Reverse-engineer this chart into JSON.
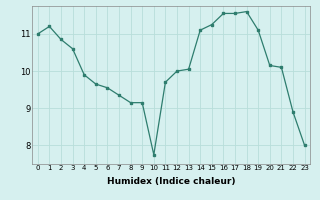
{
  "x": [
    0,
    1,
    2,
    3,
    4,
    5,
    6,
    7,
    8,
    9,
    10,
    11,
    12,
    13,
    14,
    15,
    16,
    17,
    18,
    19,
    20,
    21,
    22,
    23
  ],
  "y": [
    11.0,
    11.2,
    10.85,
    10.6,
    9.9,
    9.65,
    9.55,
    9.35,
    9.15,
    9.15,
    7.75,
    9.7,
    10.0,
    10.05,
    11.1,
    11.25,
    11.55,
    11.55,
    11.6,
    11.1,
    10.15,
    10.1,
    8.9,
    8.0
  ],
  "xlabel": "Humidex (Indice chaleur)",
  "line_color": "#2e7d6e",
  "bg_color": "#d6f0ef",
  "grid_color": "#b8deda",
  "ylim": [
    7.5,
    11.75
  ],
  "xlim": [
    -0.5,
    23.5
  ],
  "yticks": [
    8,
    9,
    10,
    11
  ],
  "xticks": [
    0,
    1,
    2,
    3,
    4,
    5,
    6,
    7,
    8,
    9,
    10,
    11,
    12,
    13,
    14,
    15,
    16,
    17,
    18,
    19,
    20,
    21,
    22,
    23
  ],
  "tick_fontsize": 5.0,
  "xlabel_fontsize": 6.5,
  "ytick_fontsize": 6.0,
  "linewidth": 0.9,
  "markersize": 2.0
}
